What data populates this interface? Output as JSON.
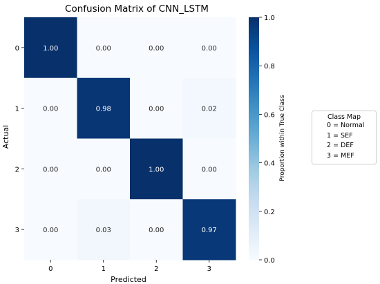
{
  "chart_data": {
    "type": "heatmap",
    "title": "Confusion Matrix of CNN_LSTM",
    "xlabel": "Predicted",
    "ylabel": "Actual",
    "x_categories": [
      "0",
      "1",
      "2",
      "3"
    ],
    "y_categories": [
      "0",
      "1",
      "2",
      "3"
    ],
    "values": [
      [
        1.0,
        0.0,
        0.0,
        0.0
      ],
      [
        0.0,
        0.98,
        0.0,
        0.02
      ],
      [
        0.0,
        0.0,
        1.0,
        0.0
      ],
      [
        0.0,
        0.03,
        0.0,
        0.97
      ]
    ],
    "value_labels": [
      [
        "1.00",
        "0.00",
        "0.00",
        "0.00"
      ],
      [
        "0.00",
        "0.98",
        "0.00",
        "0.02"
      ],
      [
        "0.00",
        "0.00",
        "1.00",
        "0.00"
      ],
      [
        "0.00",
        "0.03",
        "0.00",
        "0.97"
      ]
    ],
    "colorbar": {
      "label": "Proportion within True Class",
      "range": [
        0.0,
        1.0
      ],
      "ticks": [
        "0.0",
        "0.2",
        "0.4",
        "0.6",
        "0.8",
        "1.0"
      ],
      "colormap": "Blues",
      "color_low": "#f7fbff",
      "color_high": "#08306b"
    },
    "legend": {
      "title": "Class Map",
      "placement": "right",
      "entries": [
        "0 = Normal",
        "1 = SEF",
        "2 = DEF",
        "3 = MEF"
      ]
    }
  }
}
